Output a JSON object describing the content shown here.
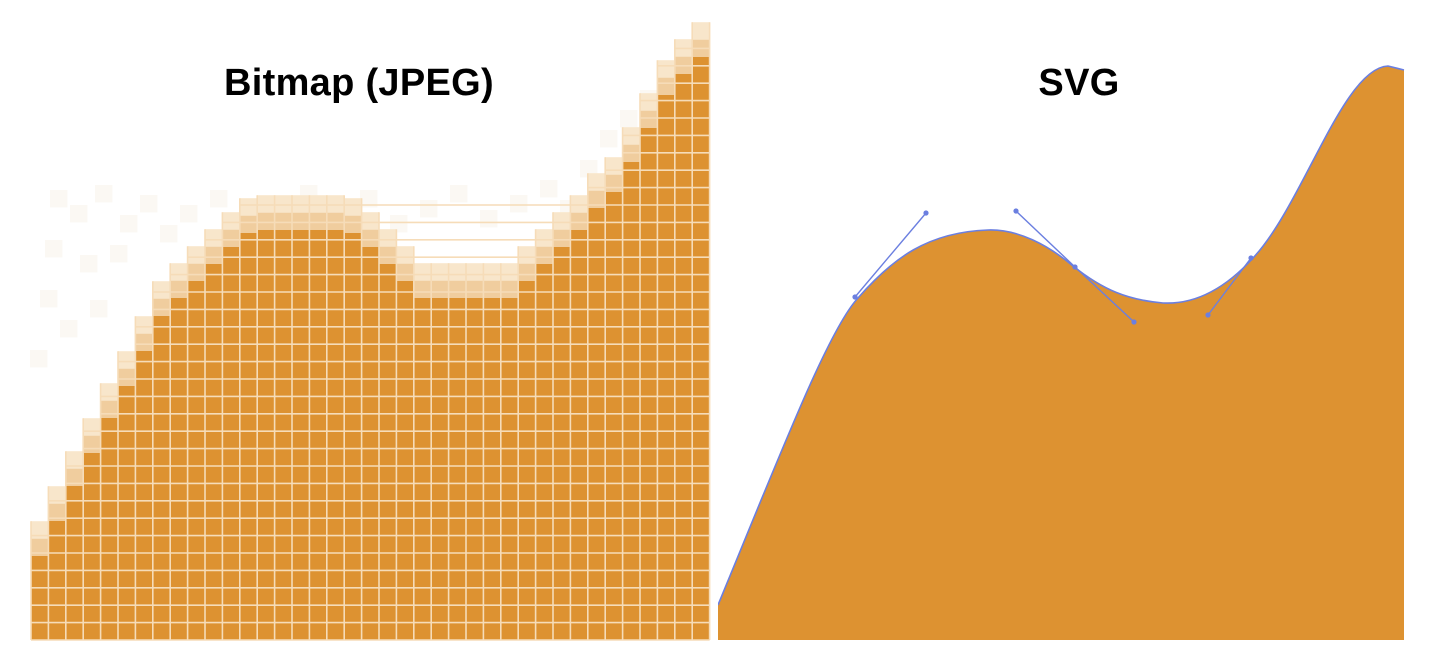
{
  "bitmap_panel": {
    "title": "Bitmap (JPEG)"
  },
  "svg_panel": {
    "title": "SVG"
  },
  "colors": {
    "fill": "#dd9231",
    "pixel_grid": "#f6dcb8",
    "edge_pixel": "#f0cd9e",
    "edge_pixel_light": "#f8e6cb",
    "noise_pixel": "#fbf8f3",
    "outline": "#6b7fe0",
    "handle": "#6b7fe0",
    "background": "#ffffff"
  },
  "icons": {
    "bezier_handles": "bezier-handle-icon"
  }
}
